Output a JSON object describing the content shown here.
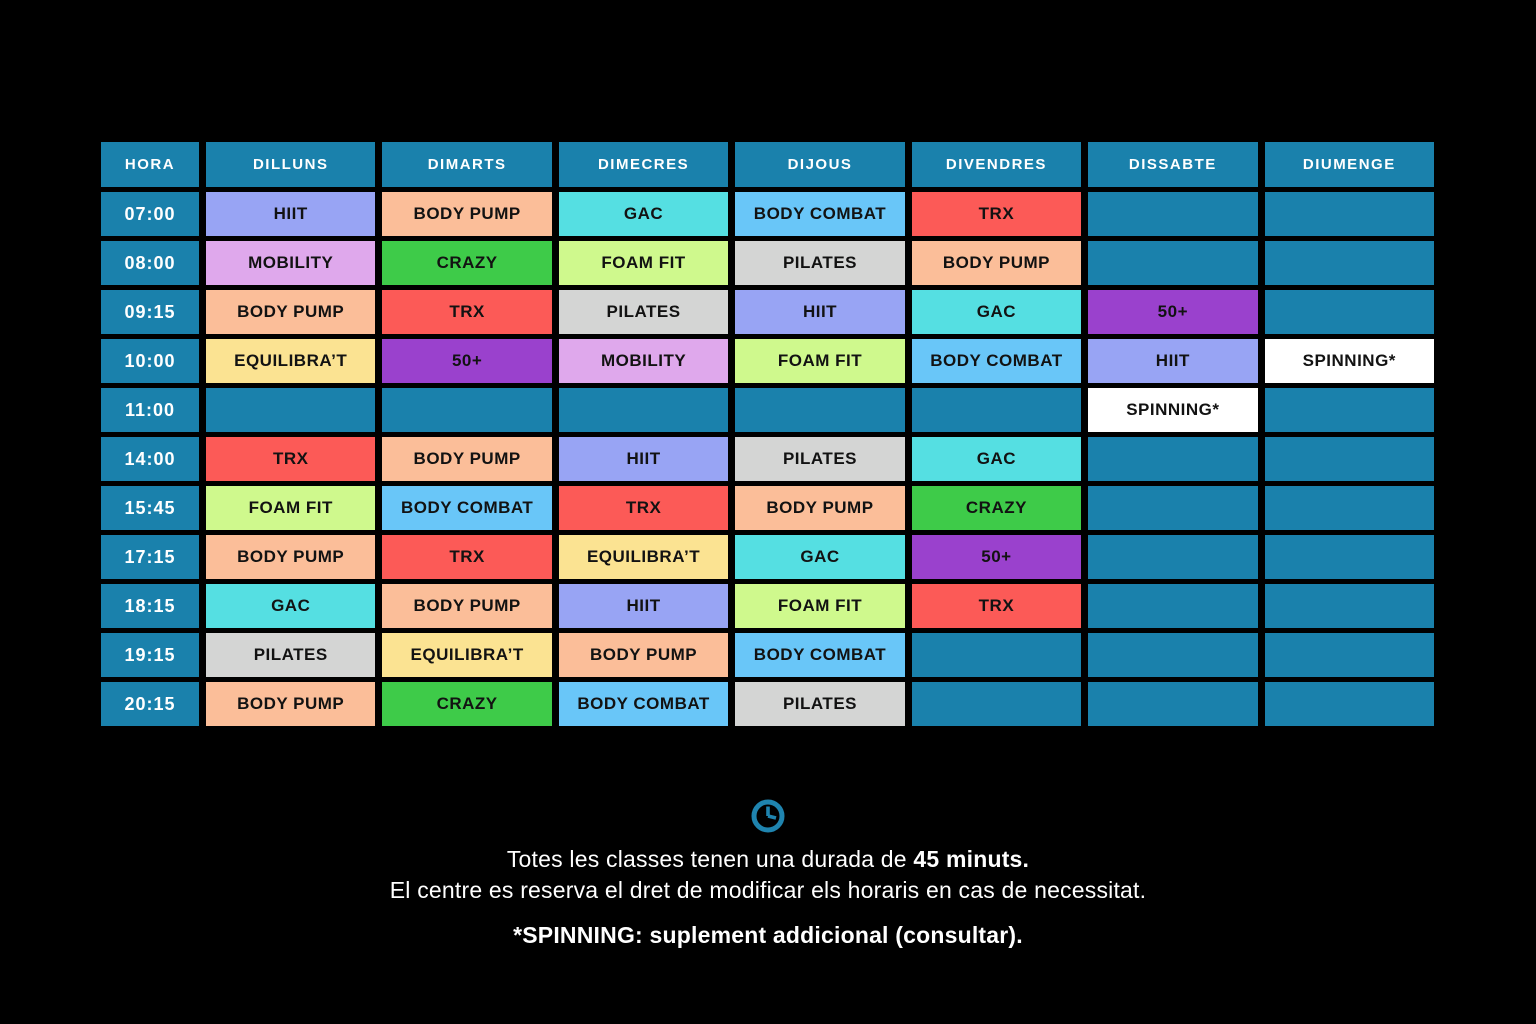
{
  "page": {
    "background": "#000000"
  },
  "colors": {
    "teal": "#1A81AC",
    "header_text": "#FFFFFF",
    "cell_text": "#121212",
    "clock": "#1F84AF"
  },
  "class_colors": {
    "HIIT": "#98A4F4",
    "BODY PUMP": "#FBBE99",
    "GAC": "#55DFE2",
    "BODY COMBAT": "#69C6F8",
    "TRX": "#FC5A57",
    "MOBILITY": "#DFA8EC",
    "CRAZY": "#3ECB49",
    "FOAM FIT": "#CFF98D",
    "PILATES": "#D4D5D4",
    "EQUILIBRA’T": "#FBE392",
    "50+": "#9A41CD",
    "SPINNING*": "#FFFFFF"
  },
  "table": {
    "columns": [
      "HORA",
      "DILLUNS",
      "DIMARTS",
      "DIMECRES",
      "DIJOUS",
      "DIVENDRES",
      "DISSABTE",
      "DIUMENGE"
    ],
    "rows": [
      {
        "time": "07:00",
        "cells": [
          "HIIT",
          "BODY PUMP",
          "GAC",
          "BODY COMBAT",
          "TRX",
          "",
          ""
        ]
      },
      {
        "time": "08:00",
        "cells": [
          "MOBILITY",
          "CRAZY",
          "FOAM FIT",
          "PILATES",
          "BODY PUMP",
          "",
          ""
        ]
      },
      {
        "time": "09:15",
        "cells": [
          "BODY PUMP",
          "TRX",
          "PILATES",
          "HIIT",
          "GAC",
          "50+",
          ""
        ]
      },
      {
        "time": "10:00",
        "cells": [
          "EQUILIBRA’T",
          "50+",
          "MOBILITY",
          "FOAM FIT",
          "BODY COMBAT",
          "HIIT",
          "SPINNING*"
        ]
      },
      {
        "time": "11:00",
        "cells": [
          "",
          "",
          "",
          "",
          "",
          "SPINNING*",
          ""
        ]
      },
      {
        "time": "14:00",
        "cells": [
          "TRX",
          "BODY PUMP",
          "HIIT",
          "PILATES",
          "GAC",
          "",
          ""
        ]
      },
      {
        "time": "15:45",
        "cells": [
          "FOAM FIT",
          "BODY COMBAT",
          "TRX",
          "BODY PUMP",
          "CRAZY",
          "",
          ""
        ]
      },
      {
        "time": "17:15",
        "cells": [
          "BODY PUMP",
          "TRX",
          "EQUILIBRA’T",
          "GAC",
          "50+",
          "",
          ""
        ]
      },
      {
        "time": "18:15",
        "cells": [
          "GAC",
          "BODY PUMP",
          "HIIT",
          "FOAM FIT",
          "TRX",
          "",
          ""
        ]
      },
      {
        "time": "19:15",
        "cells": [
          "PILATES",
          "EQUILIBRA’T",
          "BODY PUMP",
          "BODY COMBAT",
          "",
          "",
          ""
        ]
      },
      {
        "time": "20:15",
        "cells": [
          "BODY PUMP",
          "CRAZY",
          "BODY COMBAT",
          "PILATES",
          "",
          "",
          ""
        ]
      }
    ]
  },
  "footer": {
    "line1_prefix": "Totes les classes tenen una durada de ",
    "line1_bold": "45 minuts.",
    "line2": "El centre es reserva el dret de modificar els horaris en cas de necessitat.",
    "line3": "*SPINNING: suplement addicional (consultar)."
  }
}
